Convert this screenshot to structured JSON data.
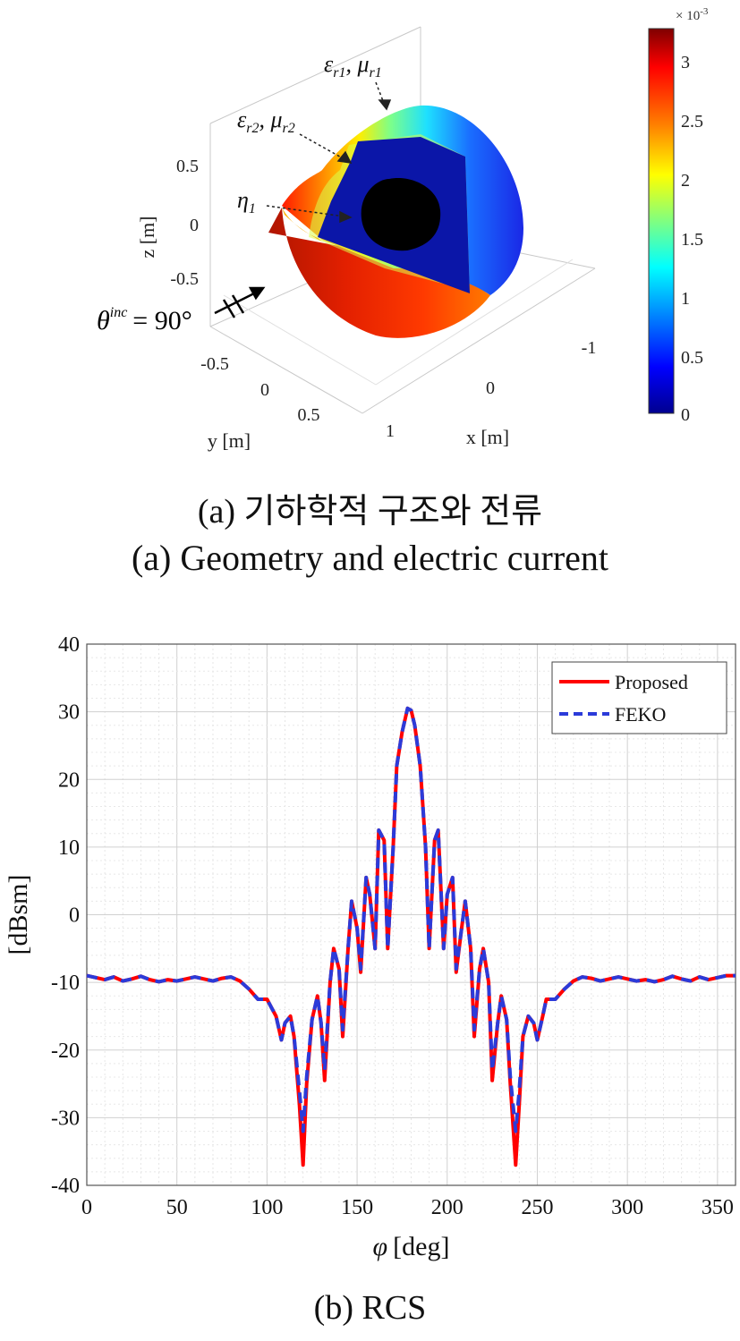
{
  "figure_a": {
    "caption_ko": "(a) 기하학적 구조와 전류",
    "caption_en": "(a) Geometry and electric current",
    "zlabel": "z [m]",
    "ylabel": "y [m]",
    "xlabel": "x [m]",
    "z_ticks": [
      "0.5",
      "0",
      "-0.5"
    ],
    "y_ticks": [
      "-0.5",
      "0",
      "0.5"
    ],
    "x_ticks": [
      "-1",
      "0",
      "1"
    ],
    "incidence_label": "θ",
    "incidence_sup": "inc",
    "incidence_value": "= 90°",
    "annotations": {
      "outer_eps": "ε",
      "outer_eps_sub": "r1",
      "outer_mu": "μ",
      "outer_mu_sub": "r1",
      "mid_eps": "ε",
      "mid_eps_sub": "r2",
      "mid_mu": "μ",
      "mid_mu_sub": "r2",
      "core_eta": "η",
      "core_eta_sub": "1"
    },
    "colorbar": {
      "exponent": "× 10",
      "exponent_power": "-3",
      "ticks": [
        "3",
        "2.5",
        "2",
        "1.5",
        "1",
        "0.5",
        "0"
      ],
      "colors": [
        "#7f0000",
        "#ff0000",
        "#ff8000",
        "#ffff00",
        "#80ff80",
        "#00ffff",
        "#0080ff",
        "#0000ff",
        "#00008f"
      ]
    }
  },
  "chart_data": {
    "type": "line",
    "xlabel_symbol": "φ",
    "xlabel": "[deg]",
    "ylabel": "[dBsm]",
    "xlim": [
      0,
      360
    ],
    "ylim": [
      -40,
      40
    ],
    "xticks": [
      0,
      50,
      100,
      150,
      200,
      250,
      300,
      350
    ],
    "yticks": [
      -40,
      -30,
      -20,
      -10,
      0,
      10,
      20,
      30,
      40
    ],
    "grid": true,
    "legend_position": "top-right",
    "caption": "(b) RCS",
    "x": [
      0,
      5,
      10,
      15,
      20,
      25,
      30,
      35,
      40,
      45,
      50,
      55,
      60,
      65,
      70,
      75,
      80,
      85,
      90,
      95,
      100,
      105,
      108,
      110,
      113,
      115,
      118,
      120,
      122,
      125,
      128,
      130,
      132,
      135,
      137,
      140,
      142,
      145,
      147,
      150,
      152,
      155,
      157,
      160,
      162,
      165,
      167,
      170,
      172,
      175,
      178,
      180,
      182,
      185,
      188,
      190,
      193,
      195,
      198,
      200,
      203,
      205,
      208,
      210,
      213,
      215,
      218,
      220,
      223,
      225,
      228,
      230,
      233,
      235,
      238,
      240,
      242,
      245,
      248,
      250,
      253,
      255,
      260,
      265,
      270,
      275,
      280,
      285,
      290,
      295,
      300,
      305,
      310,
      315,
      320,
      325,
      330,
      335,
      340,
      345,
      350,
      355,
      360
    ],
    "series": [
      {
        "name": "Proposed",
        "color": "#ff0000",
        "style": "solid",
        "values": [
          -9,
          -9.3,
          -9.6,
          -9.2,
          -9.8,
          -9.5,
          -9.1,
          -9.6,
          -9.9,
          -9.6,
          -9.8,
          -9.5,
          -9.2,
          -9.5,
          -9.8,
          -9.4,
          -9.2,
          -9.8,
          -11,
          -12.5,
          -12.5,
          -15,
          -18.5,
          -16,
          -15,
          -18,
          -28,
          -37,
          -25,
          -15.5,
          -12,
          -16,
          -24.5,
          -10,
          -5,
          -8,
          -18,
          -5,
          2,
          -2,
          -8.5,
          5.5,
          3,
          -5,
          12.5,
          11,
          -5,
          10,
          22,
          27,
          30.5,
          30.2,
          28,
          22,
          10,
          -5,
          11,
          12.5,
          -5,
          3,
          5.5,
          -8.5,
          -2,
          2,
          -5,
          -18,
          -8,
          -5,
          -10,
          -24.5,
          -16,
          -12,
          -15.5,
          -25,
          -37,
          -28,
          -18,
          -15,
          -16,
          -18.5,
          -15,
          -12.5,
          -12.5,
          -11,
          -9.8,
          -9.2,
          -9.4,
          -9.8,
          -9.5,
          -9.2,
          -9.5,
          -9.8,
          -9.6,
          -9.9,
          -9.6,
          -9.1,
          -9.5,
          -9.8,
          -9.2,
          -9.6,
          -9.3,
          -9,
          -9
        ]
      },
      {
        "name": "FEKO",
        "color": "#2b3bd9",
        "style": "dashed",
        "values": [
          -9,
          -9.3,
          -9.6,
          -9.2,
          -9.8,
          -9.5,
          -9.1,
          -9.6,
          -9.9,
          -9.6,
          -9.8,
          -9.5,
          -9.2,
          -9.5,
          -9.8,
          -9.4,
          -9.2,
          -9.8,
          -11,
          -12.5,
          -12.5,
          -15,
          -18.5,
          -16,
          -15,
          -18,
          -26,
          -32,
          -24,
          -15.5,
          -12,
          -16,
          -23,
          -10,
          -5,
          -8,
          -17,
          -5,
          2,
          -2,
          -8,
          5.5,
          3,
          -5,
          12.5,
          11,
          -5,
          10,
          22,
          27,
          30.5,
          30.2,
          28,
          22,
          10,
          -5,
          11,
          12.5,
          -5,
          3,
          5.5,
          -8,
          -2,
          2,
          -5,
          -17,
          -8,
          -5,
          -10,
          -23,
          -16,
          -12,
          -15.5,
          -24,
          -32,
          -26,
          -18,
          -15,
          -16,
          -18.5,
          -15,
          -12.5,
          -12.5,
          -11,
          -9.8,
          -9.2,
          -9.4,
          -9.8,
          -9.5,
          -9.2,
          -9.5,
          -9.8,
          -9.6,
          -9.9,
          -9.6,
          -9.1,
          -9.5,
          -9.8,
          -9.2,
          -9.6,
          -9.3,
          -9,
          -9
        ]
      }
    ]
  }
}
